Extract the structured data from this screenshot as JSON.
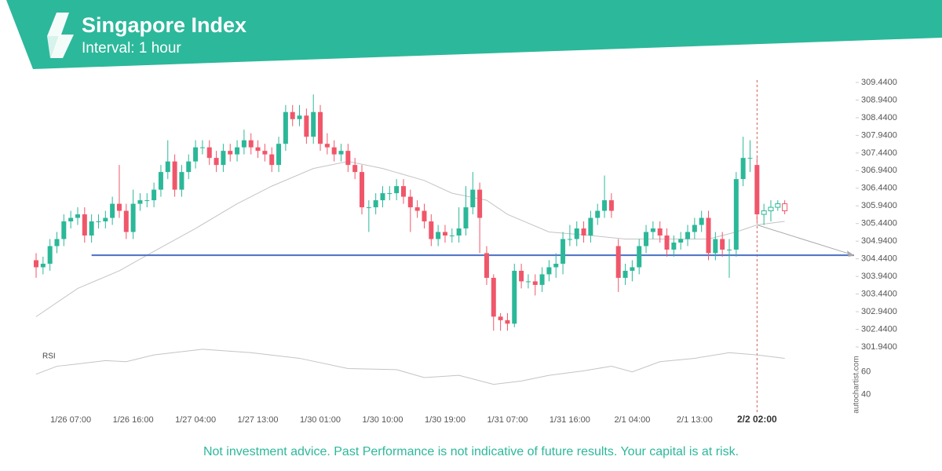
{
  "header": {
    "title": "Singapore Index",
    "subtitle": "Interval: 1 hour"
  },
  "chart_data": {
    "type": "candlestick",
    "categories": [
      null,
      null,
      null,
      null,
      null,
      "1/26 07:00",
      null,
      null,
      null,
      null,
      null,
      null,
      null,
      null,
      "1/26 16:00",
      null,
      null,
      null,
      null,
      null,
      null,
      null,
      null,
      "1/27 04:00",
      null,
      null,
      null,
      null,
      null,
      null,
      null,
      null,
      "1/27 13:00",
      null,
      null,
      null,
      null,
      null,
      null,
      null,
      null,
      "1/30 01:00",
      null,
      null,
      null,
      null,
      null,
      null,
      null,
      null,
      "1/30 10:00",
      null,
      null,
      null,
      null,
      null,
      null,
      null,
      null,
      "1/30 19:00",
      null,
      null,
      null,
      null,
      null,
      null,
      null,
      null,
      "1/31 07:00",
      null,
      null,
      null,
      null,
      null,
      null,
      null,
      null,
      "1/31 16:00",
      null,
      null,
      null,
      null,
      null,
      null,
      null,
      null,
      "2/1 04:00",
      null,
      null,
      null,
      null,
      null,
      null,
      null,
      null,
      "2/1 13:00",
      null,
      null,
      null,
      null,
      null,
      null,
      null,
      null,
      "2/2 02:00",
      null,
      null,
      null,
      null
    ],
    "open": [
      304.4,
      304.2,
      304.3,
      304.8,
      305.0,
      305.5,
      305.6,
      305.7,
      305.1,
      305.5,
      305.5,
      305.6,
      306.0,
      305.8,
      305.2,
      306.0,
      306.1,
      306.1,
      306.4,
      306.9,
      307.2,
      306.4,
      306.9,
      307.2,
      307.6,
      307.6,
      307.3,
      307.1,
      307.5,
      307.4,
      307.6,
      307.8,
      307.6,
      307.5,
      307.4,
      307.1,
      307.7,
      308.6,
      308.4,
      308.5,
      307.9,
      308.6,
      307.7,
      307.6,
      307.4,
      307.5,
      307.1,
      306.9,
      305.9,
      305.9,
      306.1,
      306.3,
      306.3,
      306.5,
      306.2,
      305.9,
      305.8,
      305.5,
      305.0,
      305.2,
      305.1,
      305.1,
      305.3,
      305.9,
      306.4,
      304.6,
      303.9,
      302.8,
      302.7,
      302.6,
      304.1,
      303.8,
      303.8,
      303.7,
      304.0,
      304.2,
      304.3,
      305.0,
      305.0,
      305.3,
      305.1,
      305.6,
      305.8,
      306.1,
      304.8,
      303.9,
      304.1,
      304.2,
      304.8,
      305.2,
      305.3,
      305.1,
      304.7,
      304.9,
      305.0,
      305.2,
      305.4,
      305.6,
      304.6,
      305.0,
      304.7,
      304.7,
      306.7,
      307.3,
      307.1,
      305.7,
      305.8,
      305.9,
      306.0
    ],
    "high": [
      304.6,
      304.5,
      305.0,
      305.2,
      305.7,
      305.8,
      305.9,
      305.9,
      305.7,
      305.7,
      305.8,
      306.2,
      307.1,
      306.0,
      306.4,
      306.3,
      306.3,
      306.6,
      307.1,
      307.8,
      307.4,
      307.1,
      307.4,
      307.8,
      307.8,
      307.8,
      307.5,
      307.7,
      307.7,
      307.8,
      308.1,
      308.0,
      307.8,
      307.7,
      307.6,
      307.9,
      308.8,
      308.8,
      308.8,
      308.7,
      309.1,
      308.8,
      308.0,
      307.8,
      307.7,
      307.7,
      307.3,
      307.1,
      306.1,
      306.3,
      306.5,
      306.5,
      306.7,
      306.7,
      306.4,
      306.1,
      306.0,
      305.7,
      305.4,
      305.4,
      305.3,
      305.9,
      306.5,
      306.9,
      306.6,
      304.8,
      304.0,
      302.9,
      302.9,
      304.3,
      304.3,
      304.0,
      304.0,
      304.2,
      304.4,
      304.6,
      305.2,
      305.4,
      305.5,
      305.5,
      305.8,
      306.0,
      306.8,
      306.3,
      305.0,
      304.3,
      304.4,
      305.0,
      305.4,
      305.5,
      305.5,
      305.3,
      305.1,
      305.2,
      305.4,
      305.6,
      305.8,
      305.8,
      305.2,
      305.2,
      305.0,
      306.9,
      307.9,
      307.8,
      307.3,
      306.0,
      306.1,
      306.1,
      306.1
    ],
    "low": [
      303.9,
      304.0,
      304.1,
      304.6,
      304.8,
      305.3,
      305.4,
      304.9,
      304.9,
      305.3,
      305.3,
      305.4,
      305.6,
      305.0,
      305.0,
      305.8,
      305.9,
      305.9,
      306.2,
      306.7,
      306.2,
      306.2,
      306.7,
      307.0,
      307.4,
      307.1,
      306.9,
      306.9,
      307.2,
      307.2,
      307.4,
      307.4,
      307.3,
      307.2,
      306.9,
      306.9,
      307.5,
      308.2,
      308.2,
      307.7,
      307.7,
      307.5,
      307.4,
      307.2,
      307.2,
      306.9,
      306.7,
      305.7,
      305.2,
      305.7,
      305.9,
      306.1,
      306.1,
      306.0,
      305.2,
      305.6,
      305.3,
      304.8,
      304.8,
      304.9,
      304.9,
      304.9,
      305.1,
      305.7,
      304.6,
      303.7,
      302.4,
      302.4,
      302.4,
      302.5,
      303.6,
      303.6,
      303.4,
      303.5,
      303.8,
      303.9,
      304.0,
      304.8,
      304.8,
      304.9,
      304.9,
      305.4,
      305.6,
      305.6,
      303.5,
      303.7,
      303.8,
      304.0,
      304.6,
      305.0,
      304.9,
      304.5,
      304.5,
      304.7,
      304.8,
      305.0,
      305.2,
      304.4,
      304.4,
      304.5,
      303.9,
      304.5,
      306.5,
      306.9,
      305.5,
      305.4,
      305.5,
      305.8,
      305.7
    ],
    "close": [
      304.2,
      304.3,
      304.8,
      305.0,
      305.5,
      305.6,
      305.7,
      305.1,
      305.5,
      305.5,
      305.6,
      306.0,
      305.8,
      305.2,
      306.0,
      306.1,
      306.1,
      306.4,
      306.9,
      307.2,
      306.4,
      306.9,
      307.2,
      307.6,
      307.6,
      307.3,
      307.1,
      307.5,
      307.4,
      307.6,
      307.8,
      307.6,
      307.5,
      307.4,
      307.1,
      307.7,
      308.6,
      308.4,
      308.5,
      307.9,
      308.6,
      307.7,
      307.6,
      307.4,
      307.5,
      307.1,
      306.9,
      305.9,
      305.9,
      306.1,
      306.3,
      306.3,
      306.5,
      306.2,
      305.9,
      305.8,
      305.5,
      305.0,
      305.2,
      305.1,
      305.1,
      305.3,
      305.9,
      306.4,
      305.6,
      303.9,
      302.8,
      302.7,
      302.6,
      304.1,
      303.8,
      303.8,
      303.7,
      304.0,
      304.2,
      304.3,
      305.0,
      305.0,
      305.3,
      305.1,
      305.6,
      305.8,
      306.1,
      305.8,
      303.9,
      304.1,
      304.2,
      304.8,
      305.2,
      305.3,
      305.1,
      304.7,
      304.9,
      305.0,
      305.2,
      305.4,
      305.6,
      304.6,
      305.0,
      304.7,
      304.7,
      306.7,
      307.3,
      307.3,
      305.7,
      305.8,
      305.9,
      306.0,
      305.8
    ],
    "up_color": "#2bb899",
    "down_color": "#f0566a",
    "ylim": [
      301.94,
      309.44
    ],
    "yticks": [
      {
        "value": 309.44,
        "label": "309.4400"
      },
      {
        "value": 308.94,
        "label": "308.9400"
      },
      {
        "value": 308.44,
        "label": "308.4400"
      },
      {
        "value": 307.94,
        "label": "307.9400"
      },
      {
        "value": 307.44,
        "label": "307.4400"
      },
      {
        "value": 306.94,
        "label": "306.9400"
      },
      {
        "value": 306.44,
        "label": "306.4400"
      },
      {
        "value": 305.94,
        "label": "305.9400"
      },
      {
        "value": 305.44,
        "label": "305.4400"
      },
      {
        "value": 304.94,
        "label": "304.9400"
      },
      {
        "value": 304.44,
        "label": "304.4400"
      },
      {
        "value": 303.94,
        "label": "303.9400"
      },
      {
        "value": 303.44,
        "label": "303.4400"
      },
      {
        "value": 302.94,
        "label": "302.9400"
      },
      {
        "value": 302.44,
        "label": "302.4400"
      },
      {
        "value": 301.94,
        "label": "301.9400"
      }
    ],
    "highlight_index": 104,
    "moving_average": {
      "color": "#c4c4c4",
      "x": [
        0,
        6,
        12,
        17,
        23,
        29,
        34,
        40,
        45,
        50,
        56,
        60,
        65,
        68,
        74,
        80,
        85,
        91,
        97,
        101,
        104,
        108
      ],
      "values": [
        302.8,
        303.6,
        304.1,
        304.65,
        305.3,
        306.0,
        306.5,
        307.0,
        307.2,
        307.0,
        306.66,
        306.3,
        306.1,
        305.7,
        305.2,
        305.1,
        305.0,
        305.0,
        305.0,
        305.2,
        305.4,
        305.5
      ]
    },
    "support_line": {
      "color": "#4a6fc4",
      "from": 8,
      "to": 118,
      "value": 304.54
    },
    "forecast": {
      "color": "#aaaaaa",
      "from": 104,
      "to": 118,
      "start": 305.4,
      "end": 304.54
    },
    "rsi": {
      "label": "RSI",
      "color": "#c4c4c4",
      "ylim": [
        28,
        82
      ],
      "yticks": [
        60,
        40
      ],
      "x": [
        0,
        3,
        6,
        10,
        13,
        17,
        24,
        31,
        38,
        45,
        52,
        56,
        61,
        66,
        70,
        74,
        79,
        83,
        86,
        90,
        95,
        100,
        104,
        108
      ],
      "values": [
        58,
        65,
        67,
        70,
        69,
        75,
        80,
        77,
        72,
        63,
        62,
        55,
        57,
        49,
        52,
        57,
        61,
        65,
        60,
        69,
        72,
        77,
        75,
        72
      ]
    }
  },
  "watermark": "autochartist.com",
  "disclaimer": "Not investment advice. Past Performance is not indicative of future results. Your capital is at risk."
}
